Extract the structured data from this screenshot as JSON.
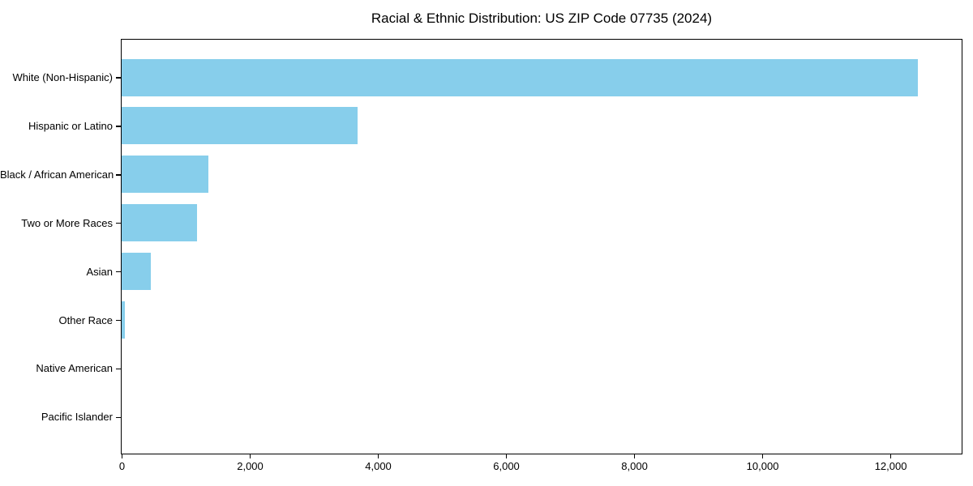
{
  "title": "Racial & Ethnic Distribution: US ZIP Code 07735 (2024)",
  "colors": {
    "bar": "#87CEEB",
    "axis": "#000000",
    "background": "#FFFFFF",
    "text": "#000000"
  },
  "chart_data": {
    "type": "bar",
    "orientation": "horizontal",
    "title": "Racial & Ethnic Distribution: US ZIP Code 07735 (2024)",
    "categories": [
      "White (Non-Hispanic)",
      "Hispanic or Latino",
      "Black / African American",
      "Two or More Races",
      "Asian",
      "Other Race",
      "Native American",
      "Pacific Islander"
    ],
    "values": [
      12430,
      3680,
      1360,
      1180,
      460,
      50,
      0,
      0
    ],
    "xlabel": "",
    "ylabel": "",
    "xlim": [
      0,
      13100
    ],
    "xticks": [
      0,
      2000,
      4000,
      6000,
      8000,
      10000,
      12000
    ],
    "xtick_labels": [
      "0",
      "2,000",
      "4,000",
      "6,000",
      "8,000",
      "10,000",
      "12,000"
    ],
    "grid": false,
    "legend": null,
    "bar_color": "#87CEEB",
    "plot_border": true
  }
}
